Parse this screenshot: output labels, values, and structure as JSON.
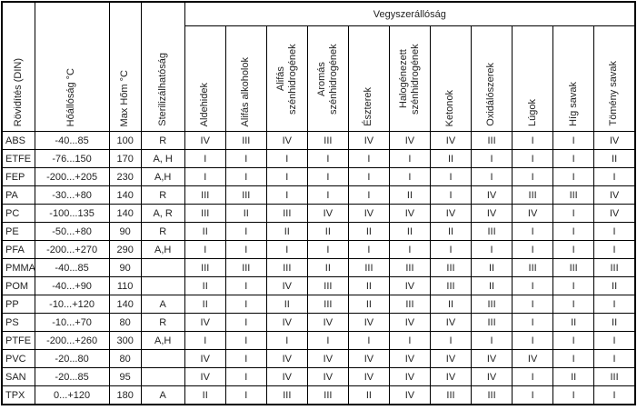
{
  "table": {
    "group_header": "Vegyszerállóság",
    "left_headers": [
      "Rövidítés (DIN)",
      "Hőállóság °C",
      "Max Hőm °C",
      "Sterilizálhatóság"
    ],
    "chem_headers": [
      "Aldehidek",
      "Alifás alkoholok",
      "Alifás szénhidrogének",
      "Aromás szénhidrogének",
      "Észterek",
      "Halogénezett szénhidrogének",
      "Ketonok",
      "Oxidálószerek",
      "Lúgok",
      "Híg savak",
      "Tömény savak"
    ],
    "rows": [
      {
        "name": "ABS",
        "temp_range": "-40...85",
        "max_temp": "100",
        "sterilization": "R",
        "values": [
          "IV",
          "III",
          "IV",
          "III",
          "IV",
          "IV",
          "IV",
          "III",
          "I",
          "I",
          "IV"
        ]
      },
      {
        "name": "ETFE",
        "temp_range": "-76...150",
        "max_temp": "170",
        "sterilization": "A, H",
        "values": [
          "I",
          "I",
          "I",
          "I",
          "I",
          "I",
          "II",
          "I",
          "I",
          "I",
          "II"
        ]
      },
      {
        "name": "FEP",
        "temp_range": "-200...+205",
        "max_temp": "230",
        "sterilization": "A,H",
        "values": [
          "I",
          "I",
          "I",
          "I",
          "I",
          "I",
          "I",
          "I",
          "I",
          "I",
          "I"
        ]
      },
      {
        "name": "PA",
        "temp_range": "-30...+80",
        "max_temp": "140",
        "sterilization": "R",
        "values": [
          "III",
          "III",
          "I",
          "I",
          "I",
          "II",
          "I",
          "IV",
          "III",
          "III",
          "IV"
        ]
      },
      {
        "name": "PC",
        "temp_range": "-100...135",
        "max_temp": "140",
        "sterilization": "A, R",
        "values": [
          "III",
          "II",
          "III",
          "IV",
          "IV",
          "IV",
          "IV",
          "IV",
          "IV",
          "I",
          "IV"
        ]
      },
      {
        "name": "PE",
        "temp_range": "-50...+80",
        "max_temp": "90",
        "sterilization": "R",
        "values": [
          "II",
          "I",
          "II",
          "II",
          "II",
          "II",
          "II",
          "III",
          "I",
          "I",
          "I"
        ]
      },
      {
        "name": "PFA",
        "temp_range": "-200...+270",
        "max_temp": "290",
        "sterilization": "A,H",
        "values": [
          "I",
          "I",
          "I",
          "I",
          "I",
          "I",
          "I",
          "I",
          "I",
          "I",
          "I"
        ]
      },
      {
        "name": "PMMA",
        "temp_range": "-40...85",
        "max_temp": "90",
        "sterilization": "",
        "values": [
          "III",
          "III",
          "III",
          "II",
          "III",
          "III",
          "III",
          "II",
          "III",
          "III",
          "III"
        ]
      },
      {
        "name": "POM",
        "temp_range": "-40...+90",
        "max_temp": "110",
        "sterilization": "",
        "values": [
          "II",
          "I",
          "IV",
          "III",
          "II",
          "IV",
          "III",
          "II",
          "I",
          "I",
          "II"
        ]
      },
      {
        "name": "PP",
        "temp_range": "-10...+120",
        "max_temp": "140",
        "sterilization": "A",
        "values": [
          "II",
          "I",
          "II",
          "III",
          "II",
          "III",
          "II",
          "III",
          "I",
          "I",
          "I"
        ]
      },
      {
        "name": "PS",
        "temp_range": "-10...+70",
        "max_temp": "80",
        "sterilization": "R",
        "values": [
          "IV",
          "I",
          "IV",
          "IV",
          "IV",
          "IV",
          "IV",
          "III",
          "I",
          "II",
          "II"
        ]
      },
      {
        "name": "PTFE",
        "temp_range": "-200...+260",
        "max_temp": "300",
        "sterilization": "A,H",
        "values": [
          "I",
          "I",
          "I",
          "I",
          "I",
          "I",
          "I",
          "I",
          "I",
          "I",
          "I"
        ]
      },
      {
        "name": "PVC",
        "temp_range": "-20...80",
        "max_temp": "80",
        "sterilization": "",
        "values": [
          "IV",
          "I",
          "IV",
          "IV",
          "IV",
          "IV",
          "IV",
          "IV",
          "IV",
          "I",
          "I"
        ]
      },
      {
        "name": "SAN",
        "temp_range": "-20...85",
        "max_temp": "95",
        "sterilization": "",
        "values": [
          "IV",
          "I",
          "IV",
          "IV",
          "IV",
          "IV",
          "IV",
          "IV",
          "I",
          "II",
          "III"
        ]
      },
      {
        "name": "TPX",
        "temp_range": "0...+120",
        "max_temp": "180",
        "sterilization": "A",
        "values": [
          "II",
          "I",
          "III",
          "III",
          "II",
          "IV",
          "III",
          "III",
          "I",
          "I",
          "I"
        ]
      }
    ]
  }
}
